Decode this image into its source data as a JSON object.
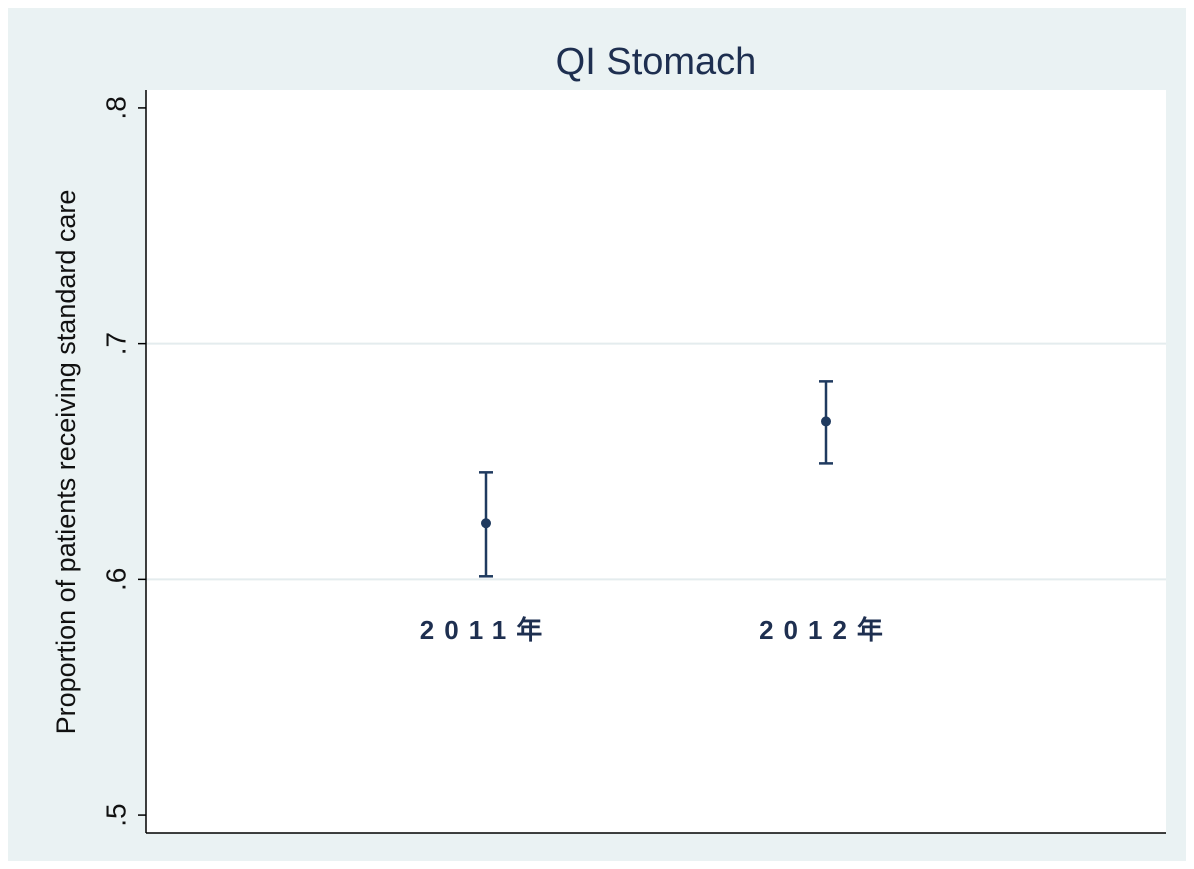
{
  "chart_data": {
    "type": "errorbar",
    "title": "QI Stomach",
    "y_label": "Proportion of patients receiving standard care",
    "categories": [
      "2011年",
      "2012年"
    ],
    "values": [
      0.6238,
      0.667
    ],
    "lower": [
      0.6013,
      0.6492
    ],
    "upper": [
      0.6454,
      0.684
    ],
    "color": "#1f3a5f",
    "ylim": [
      0.4924,
      0.8076
    ],
    "yticks": [
      {
        "value": 0.5,
        "label": ".5"
      },
      {
        "value": 0.6,
        "label": ".6"
      },
      {
        "value": 0.7,
        "label": ".7"
      },
      {
        "value": 0.8,
        "label": ".8"
      }
    ],
    "grid": true
  }
}
